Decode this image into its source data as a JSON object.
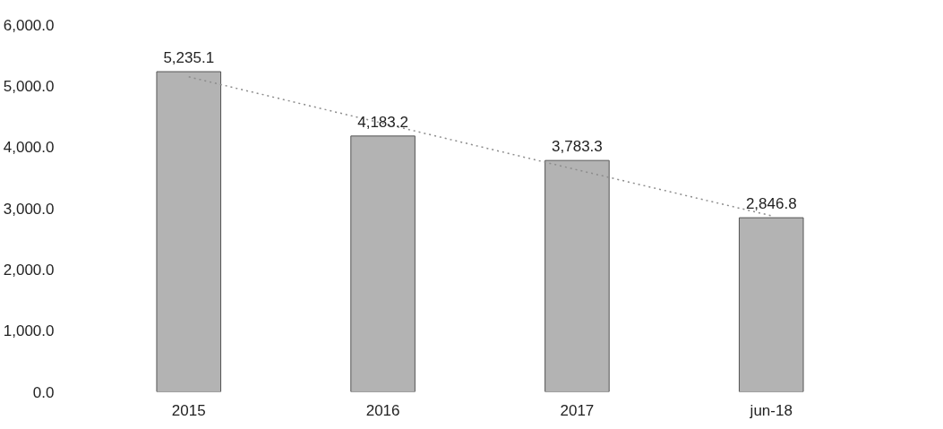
{
  "chart_data": {
    "type": "bar",
    "categories": [
      "2015",
      "2016",
      "2017",
      "jun-18"
    ],
    "series": [
      {
        "color": "#b3b3b3",
        "values": [
          5235.1,
          4183.2,
          3783.3,
          2846.8
        ]
      },
      {
        "type": "line",
        "color": "#8c8c8c",
        "line_style": "dotted",
        "values": [
          5150,
          4390,
          3630,
          2880
        ]
      }
    ],
    "value_labels": [
      "5,235.1",
      "4,183.2",
      "3,783.3",
      "2,846.8"
    ],
    "ylim": [
      0,
      6000
    ],
    "yticks": [
      {
        "value": 0,
        "label": "0.0"
      },
      {
        "value": 1000,
        "label": "1,000.0"
      },
      {
        "value": 2000,
        "label": "2,000.0"
      },
      {
        "value": 3000,
        "label": "3,000.0"
      },
      {
        "value": 4000,
        "label": "4,000.0"
      },
      {
        "value": 5000,
        "label": "5,000.0"
      },
      {
        "value": 6000,
        "label": "6,000.0"
      }
    ],
    "grid": false
  }
}
